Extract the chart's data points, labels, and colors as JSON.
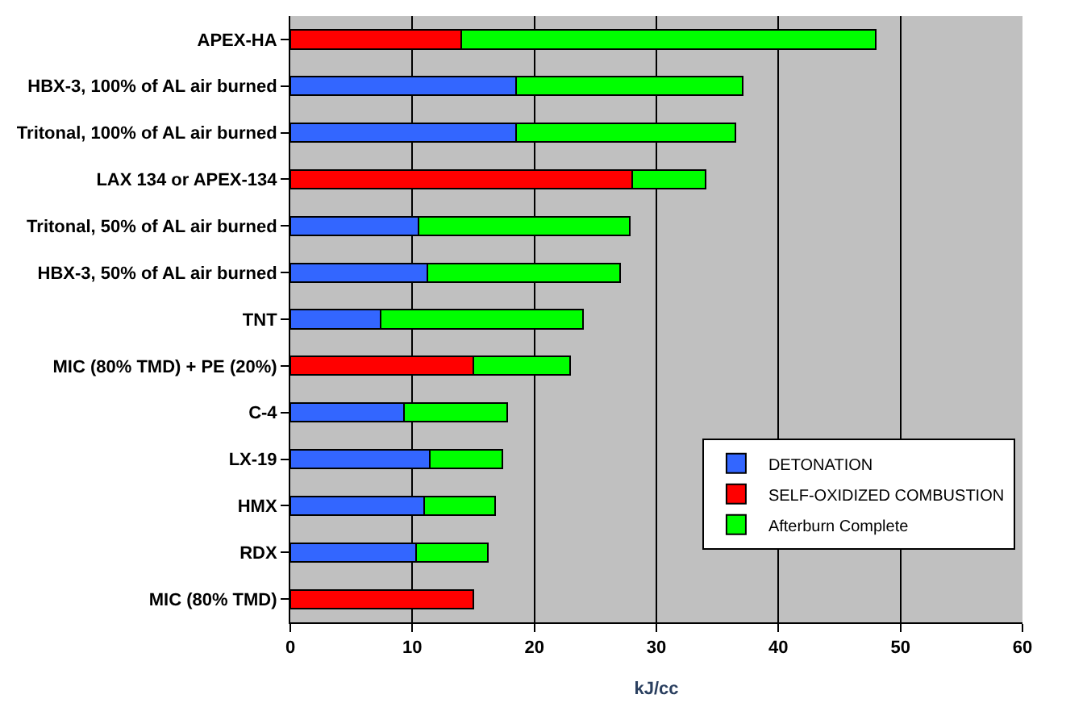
{
  "chart_data": {
    "type": "bar",
    "orientation": "horizontal",
    "stacked": true,
    "xlabel": "kJ/cc",
    "categories": [
      "APEX-HA",
      "HBX-3, 100% of AL air burned",
      "Tritonal, 100% of AL air burned",
      "LAX 134 or APEX-134",
      "Tritonal, 50% of AL air burned",
      "HBX-3, 50% of AL air burned",
      "TNT",
      "MIC (80% TMD) + PE (20%)",
      "C-4",
      "LX-19",
      "HMX",
      "RDX",
      "MIC (80% TMD)"
    ],
    "series": [
      {
        "name": "DETONATION",
        "color": "#3366ff",
        "values": [
          null,
          18.5,
          18.5,
          null,
          10.5,
          11.2,
          7.4,
          null,
          9.3,
          11.4,
          11.0,
          10.3,
          null
        ]
      },
      {
        "name": "SELF-OXIDIZED COMBUSTION",
        "color": "#ff0000",
        "values": [
          14.0,
          null,
          null,
          28.0,
          null,
          null,
          null,
          15.0,
          null,
          null,
          null,
          null,
          15.0
        ]
      },
      {
        "name": "Afterburn Complete",
        "color": "#00ff00",
        "values": [
          34.0,
          18.6,
          18.0,
          6.0,
          17.3,
          15.8,
          16.6,
          7.9,
          8.5,
          6.0,
          5.8,
          5.9,
          null
        ]
      }
    ],
    "xlim": [
      0,
      60
    ],
    "xticks": [
      0,
      10,
      20,
      30,
      40,
      50,
      60
    ],
    "grid": "x",
    "legend": "bottom right"
  }
}
